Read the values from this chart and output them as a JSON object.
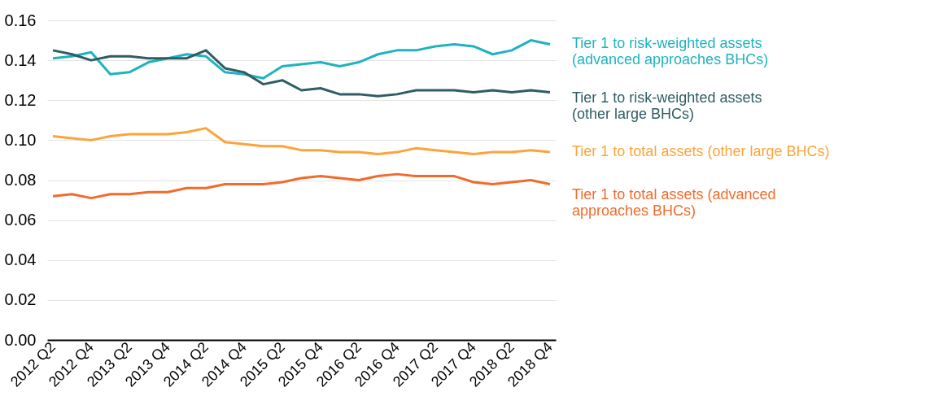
{
  "chart_data": {
    "type": "line",
    "categories": [
      "2012 Q2",
      null,
      "2012 Q4",
      null,
      "2013 Q2",
      null,
      "2013 Q4",
      null,
      "2014 Q2",
      null,
      "2014 Q4",
      null,
      "2015 Q2",
      null,
      "2015 Q4",
      null,
      "2016 Q2",
      null,
      "2016 Q4",
      null,
      "2017 Q2",
      null,
      "2017 Q4",
      null,
      "2018 Q2",
      null,
      "2018 Q4"
    ],
    "ylim": [
      0,
      0.16
    ],
    "yticks": [
      {
        "value": 0,
        "label": "0.00"
      },
      {
        "value": 0.02,
        "label": "0.02"
      },
      {
        "value": 0.04,
        "label": "0.04"
      },
      {
        "value": 0.06,
        "label": "0.06"
      },
      {
        "value": 0.08,
        "label": "0.08"
      },
      {
        "value": 0.1,
        "label": "0.10"
      },
      {
        "value": 0.12,
        "label": "0.12"
      },
      {
        "value": 0.14,
        "label": "0.14"
      },
      {
        "value": 0.16,
        "label": "0.16"
      }
    ],
    "grid": "y",
    "legend": "right",
    "marker": "none",
    "line_style": "solid",
    "series": [
      {
        "name": "Tier 1 to risk-weighted assets\n(advanced approaches BHCs)",
        "color": "#1fb3bf",
        "values": [
          0.141,
          0.142,
          0.144,
          0.133,
          0.134,
          0.139,
          0.141,
          0.143,
          0.142,
          0.134,
          0.133,
          0.131,
          0.137,
          0.138,
          0.139,
          0.137,
          0.139,
          0.143,
          0.145,
          0.145,
          0.147,
          0.148,
          0.147,
          0.143,
          0.145,
          0.15,
          0.148
        ]
      },
      {
        "name": "Tier 1 to risk-weighted assets\n(other large BHCs)",
        "color": "#2f5d63",
        "values": [
          0.145,
          0.143,
          0.14,
          0.142,
          0.142,
          0.141,
          0.141,
          0.141,
          0.145,
          0.136,
          0.134,
          0.128,
          0.13,
          0.125,
          0.126,
          0.123,
          0.123,
          0.122,
          0.123,
          0.125,
          0.125,
          0.125,
          0.124,
          0.125,
          0.124,
          0.125,
          0.124
        ]
      },
      {
        "name": "Tier 1 to total assets (other large BHCs)",
        "color": "#fca43a",
        "values": [
          0.102,
          0.101,
          0.1,
          0.102,
          0.103,
          0.103,
          0.103,
          0.104,
          0.106,
          0.099,
          0.098,
          0.097,
          0.097,
          0.095,
          0.095,
          0.094,
          0.094,
          0.093,
          0.094,
          0.096,
          0.095,
          0.094,
          0.093,
          0.094,
          0.094,
          0.095,
          0.094
        ]
      },
      {
        "name": "Tier 1 to total assets (advanced\napproaches BHCs)",
        "color": "#f26b2b",
        "values": [
          0.072,
          0.073,
          0.071,
          0.073,
          0.073,
          0.074,
          0.074,
          0.076,
          0.076,
          0.078,
          0.078,
          0.078,
          0.079,
          0.081,
          0.082,
          0.081,
          0.08,
          0.082,
          0.083,
          0.082,
          0.082,
          0.082,
          0.079,
          0.078,
          0.079,
          0.08,
          0.078
        ]
      }
    ]
  }
}
